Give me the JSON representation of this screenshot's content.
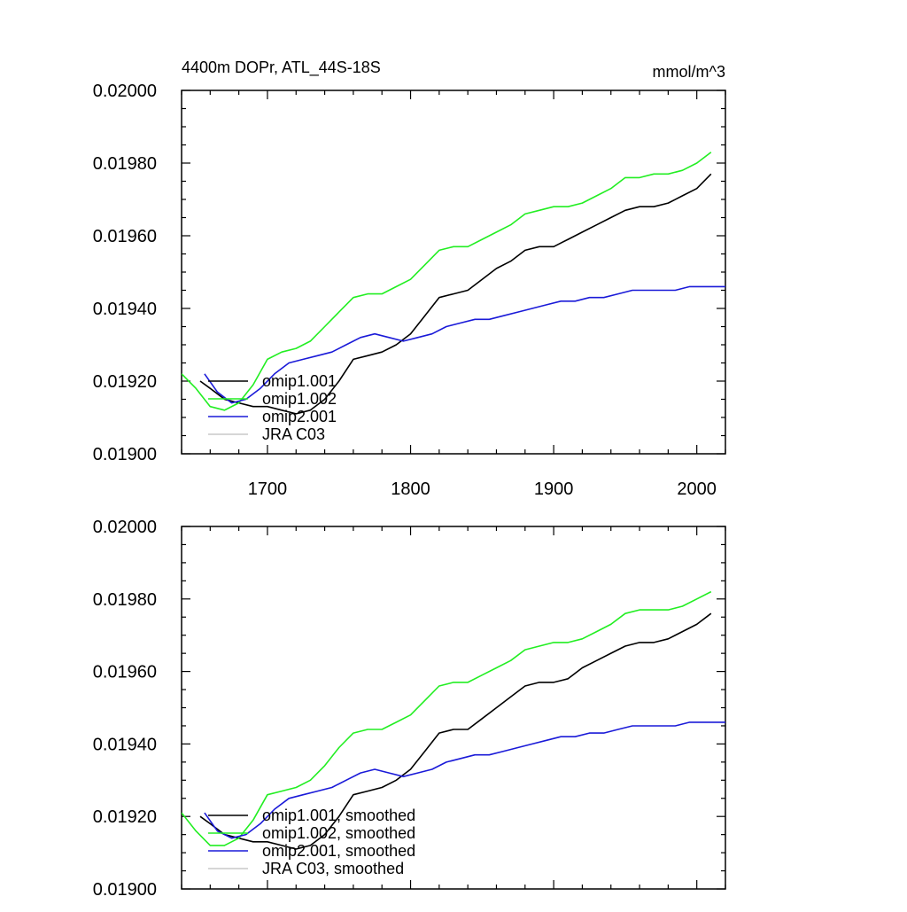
{
  "chart_data": [
    {
      "type": "line",
      "title": "4400m DOPr, ATL_44S-18S",
      "units": "mmol/m^3",
      "xlim": [
        1640,
        2020
      ],
      "ylim": [
        0.019,
        0.02
      ],
      "x_ticks": [
        1700,
        1800,
        1900,
        2000
      ],
      "y_ticks": [
        "0.02000",
        "0.01980",
        "0.01960",
        "0.01940",
        "0.01920",
        "0.01900"
      ],
      "y_tick_values": [
        0.02,
        0.0198,
        0.0196,
        0.0194,
        0.0192,
        0.019
      ],
      "legend_position": "bottom-left",
      "colors": {
        "omip1_001": "#000000",
        "omip1_002": "#22ee22",
        "omip2_001": "#1a1ad8",
        "jra": "#c8c8c8"
      },
      "series": [
        {
          "name": "omip1.001",
          "color": "#000000",
          "x": [
            1653,
            1660,
            1670,
            1680,
            1690,
            1700,
            1710,
            1720,
            1730,
            1740,
            1750,
            1760,
            1770,
            1780,
            1790,
            1800,
            1810,
            1820,
            1830,
            1840,
            1850,
            1860,
            1870,
            1880,
            1890,
            1900,
            1910,
            1920,
            1930,
            1940,
            1950,
            1960,
            1970,
            1980,
            1990,
            2000,
            2010
          ],
          "y": [
            0.0192,
            0.01918,
            0.01915,
            0.01914,
            0.01913,
            0.01913,
            0.01912,
            0.01911,
            0.01912,
            0.01915,
            0.0192,
            0.01926,
            0.01927,
            0.01928,
            0.0193,
            0.01933,
            0.01938,
            0.01943,
            0.01944,
            0.01945,
            0.01948,
            0.01951,
            0.01953,
            0.01956,
            0.01957,
            0.01957,
            0.01959,
            0.01961,
            0.01963,
            0.01965,
            0.01967,
            0.01968,
            0.01968,
            0.01969,
            0.01971,
            0.01973,
            0.01977
          ]
        },
        {
          "name": "omip1.002",
          "color": "#22ee22",
          "x": [
            1640,
            1650,
            1660,
            1670,
            1680,
            1690,
            1700,
            1710,
            1720,
            1730,
            1740,
            1750,
            1760,
            1770,
            1780,
            1790,
            1800,
            1810,
            1820,
            1830,
            1840,
            1850,
            1860,
            1870,
            1880,
            1890,
            1900,
            1910,
            1920,
            1930,
            1940,
            1950,
            1960,
            1970,
            1980,
            1990,
            2000,
            2010
          ],
          "y": [
            0.01922,
            0.01918,
            0.01913,
            0.01912,
            0.01914,
            0.01919,
            0.01926,
            0.01928,
            0.01929,
            0.01931,
            0.01935,
            0.01939,
            0.01943,
            0.01944,
            0.01944,
            0.01946,
            0.01948,
            0.01952,
            0.01956,
            0.01957,
            0.01957,
            0.01959,
            0.01961,
            0.01963,
            0.01966,
            0.01967,
            0.01968,
            0.01968,
            0.01969,
            0.01971,
            0.01973,
            0.01976,
            0.01976,
            0.01977,
            0.01977,
            0.01978,
            0.0198,
            0.01983
          ]
        },
        {
          "name": "omip2.001",
          "color": "#1a1ad8",
          "x": [
            1656,
            1665,
            1675,
            1685,
            1695,
            1705,
            1715,
            1725,
            1735,
            1745,
            1755,
            1765,
            1775,
            1785,
            1795,
            1805,
            1815,
            1825,
            1835,
            1845,
            1855,
            1865,
            1875,
            1885,
            1895,
            1905,
            1915,
            1925,
            1935,
            1945,
            1955,
            1965,
            1975,
            1985,
            1995,
            2005,
            2020
          ],
          "y": [
            0.01922,
            0.01917,
            0.01914,
            0.01915,
            0.01918,
            0.01922,
            0.01925,
            0.01926,
            0.01927,
            0.01928,
            0.0193,
            0.01932,
            0.01933,
            0.01932,
            0.01931,
            0.01932,
            0.01933,
            0.01935,
            0.01936,
            0.01937,
            0.01937,
            0.01938,
            0.01939,
            0.0194,
            0.01941,
            0.01942,
            0.01942,
            0.01943,
            0.01943,
            0.01944,
            0.01945,
            0.01945,
            0.01945,
            0.01945,
            0.01946,
            0.01946,
            0.01946
          ]
        },
        {
          "name": "JRA C03",
          "color": "#c8c8c8",
          "x": [],
          "y": []
        }
      ]
    },
    {
      "type": "line",
      "xlim": [
        1640,
        2020
      ],
      "ylim": [
        0.019,
        0.02
      ],
      "y_ticks": [
        "0.02000",
        "0.01980",
        "0.01960",
        "0.01940",
        "0.01920",
        "0.01900"
      ],
      "y_tick_values": [
        0.02,
        0.0198,
        0.0196,
        0.0194,
        0.0192,
        0.019
      ],
      "legend_position": "bottom-left",
      "series": [
        {
          "name": "omip1.001, smoothed",
          "color": "#000000",
          "x": [
            1653,
            1660,
            1670,
            1680,
            1690,
            1700,
            1710,
            1720,
            1730,
            1740,
            1750,
            1760,
            1770,
            1780,
            1790,
            1800,
            1810,
            1820,
            1830,
            1840,
            1850,
            1860,
            1870,
            1880,
            1890,
            1900,
            1910,
            1920,
            1930,
            1940,
            1950,
            1960,
            1970,
            1980,
            1990,
            2000,
            2010
          ],
          "y": [
            0.0192,
            0.01918,
            0.01915,
            0.01914,
            0.01913,
            0.01913,
            0.01912,
            0.01911,
            0.01912,
            0.01915,
            0.0192,
            0.01926,
            0.01927,
            0.01928,
            0.0193,
            0.01933,
            0.01938,
            0.01943,
            0.01944,
            0.01944,
            0.01947,
            0.0195,
            0.01953,
            0.01956,
            0.01957,
            0.01957,
            0.01958,
            0.01961,
            0.01963,
            0.01965,
            0.01967,
            0.01968,
            0.01968,
            0.01969,
            0.01971,
            0.01973,
            0.01976
          ]
        },
        {
          "name": "omip1.002, smoothed",
          "color": "#22ee22",
          "x": [
            1640,
            1650,
            1660,
            1670,
            1680,
            1690,
            1700,
            1710,
            1720,
            1730,
            1740,
            1750,
            1760,
            1770,
            1780,
            1790,
            1800,
            1810,
            1820,
            1830,
            1840,
            1850,
            1860,
            1870,
            1880,
            1890,
            1900,
            1910,
            1920,
            1930,
            1940,
            1950,
            1960,
            1970,
            1980,
            1990,
            2000,
            2010
          ],
          "y": [
            0.01921,
            0.01916,
            0.01912,
            0.01912,
            0.01914,
            0.01919,
            0.01926,
            0.01927,
            0.01928,
            0.0193,
            0.01934,
            0.01939,
            0.01943,
            0.01944,
            0.01944,
            0.01946,
            0.01948,
            0.01952,
            0.01956,
            0.01957,
            0.01957,
            0.01959,
            0.01961,
            0.01963,
            0.01966,
            0.01967,
            0.01968,
            0.01968,
            0.01969,
            0.01971,
            0.01973,
            0.01976,
            0.01977,
            0.01977,
            0.01977,
            0.01978,
            0.0198,
            0.01982
          ]
        },
        {
          "name": "omip2.001, smoothed",
          "color": "#1a1ad8",
          "x": [
            1656,
            1665,
            1675,
            1685,
            1695,
            1705,
            1715,
            1725,
            1735,
            1745,
            1755,
            1765,
            1775,
            1785,
            1795,
            1805,
            1815,
            1825,
            1835,
            1845,
            1855,
            1865,
            1875,
            1885,
            1895,
            1905,
            1915,
            1925,
            1935,
            1945,
            1955,
            1965,
            1975,
            1985,
            1995,
            2005,
            2020
          ],
          "y": [
            0.01921,
            0.01916,
            0.01914,
            0.01915,
            0.01918,
            0.01922,
            0.01925,
            0.01926,
            0.01927,
            0.01928,
            0.0193,
            0.01932,
            0.01933,
            0.01932,
            0.01931,
            0.01932,
            0.01933,
            0.01935,
            0.01936,
            0.01937,
            0.01937,
            0.01938,
            0.01939,
            0.0194,
            0.01941,
            0.01942,
            0.01942,
            0.01943,
            0.01943,
            0.01944,
            0.01945,
            0.01945,
            0.01945,
            0.01945,
            0.01946,
            0.01946,
            0.01946
          ]
        },
        {
          "name": "JRA C03, smoothed",
          "color": "#c8c8c8",
          "x": [],
          "y": []
        }
      ]
    }
  ]
}
